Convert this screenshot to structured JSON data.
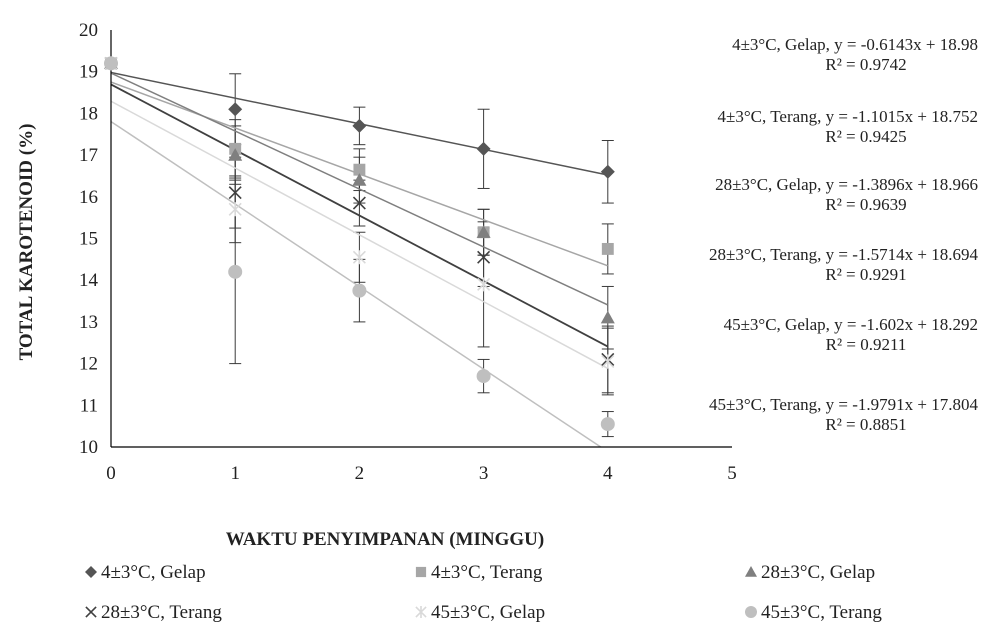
{
  "chart_data": {
    "type": "scatter",
    "title": "",
    "xlabel": "WAKTU PENYIMPANAN (MINGGU)",
    "ylabel": "TOTAL KAROTENOID (%)",
    "xlim": [
      0,
      5
    ],
    "ylim": [
      10,
      20
    ],
    "x_ticks": [
      "0",
      "1",
      "2",
      "3",
      "4",
      "5"
    ],
    "y_ticks": [
      "10",
      "11",
      "12",
      "13",
      "14",
      "15",
      "16",
      "17",
      "18",
      "19",
      "20"
    ],
    "grid": false,
    "legend_position": "bottom",
    "series": [
      {
        "name": "4±3°C, Gelap",
        "marker": "diamond",
        "color": "#555555",
        "x": [
          0,
          1,
          2,
          3,
          4
        ],
        "y": [
          19.2,
          18.1,
          17.7,
          17.15,
          16.6
        ],
        "err": [
          0.0,
          0.85,
          0.45,
          0.95,
          0.75
        ],
        "trend": {
          "slope": -0.6143,
          "intercept": 18.98
        },
        "equation": "4±3°C, Gelap, y = -0.6143x + 18.98",
        "r2": "R² = 0.9742"
      },
      {
        "name": "4±3°C, Terang",
        "marker": "square",
        "color": "#a6a6a6",
        "x": [
          0,
          1,
          2,
          3,
          4
        ],
        "y": [
          19.2,
          17.15,
          16.65,
          15.15,
          14.75
        ],
        "err": [
          0.0,
          0.7,
          0.5,
          0.55,
          0.6
        ],
        "trend": {
          "slope": -1.1015,
          "intercept": 18.752
        },
        "equation": "4±3°C, Terang, y = -1.1015x + 18.752",
        "r2": "R² = 0.9425"
      },
      {
        "name": "28±3°C, Gelap",
        "marker": "triangle",
        "color": "#7f7f7f",
        "x": [
          0,
          1,
          2,
          3,
          4
        ],
        "y": [
          19.2,
          17.0,
          16.4,
          15.15,
          13.1
        ],
        "err": [
          0.0,
          0.7,
          0.55,
          0.55,
          0.75
        ],
        "trend": {
          "slope": -1.3896,
          "intercept": 18.966
        },
        "equation": "28±3°C, Gelap, y = -1.3896x + 18.966",
        "r2": "R² = 0.9639"
      },
      {
        "name": "28±3°C, Terang",
        "marker": "x",
        "color": "#404040",
        "x": [
          0,
          1,
          2,
          3,
          4
        ],
        "y": [
          19.2,
          16.1,
          15.85,
          14.55,
          12.1
        ],
        "err": [
          0.0,
          0.85,
          0.55,
          0.7,
          0.8
        ],
        "trend": {
          "slope": -1.5714,
          "intercept": 18.694
        },
        "equation": "28±3°C, Terang, y = -1.5714x + 18.694",
        "r2": "R² = 0.9291"
      },
      {
        "name": "45±3°C, Gelap",
        "marker": "star",
        "color": "#d9d9d9",
        "x": [
          0,
          1,
          2,
          3,
          4
        ],
        "y": [
          19.2,
          15.7,
          14.55,
          13.9,
          12.05
        ],
        "err": [
          0.0,
          0.8,
          0.6,
          1.5,
          0.8
        ],
        "trend": {
          "slope": -1.602,
          "intercept": 18.292
        },
        "equation": "45±3°C, Gelap, y = -1.602x + 18.292",
        "r2": "R² = 0.9211"
      },
      {
        "name": "45±3°C, Terang",
        "marker": "circle",
        "color": "#bfbfbf",
        "x": [
          0,
          1,
          2,
          3,
          4
        ],
        "y": [
          19.2,
          14.2,
          13.75,
          11.7,
          10.55
        ],
        "err": [
          0.0,
          2.2,
          0.75,
          0.4,
          0.3
        ],
        "trend": {
          "slope": -1.9791,
          "intercept": 17.804
        },
        "equation": "45±3°C, Terang, y = -1.9791x + 17.804",
        "r2": "R² = 0.8851"
      }
    ]
  }
}
